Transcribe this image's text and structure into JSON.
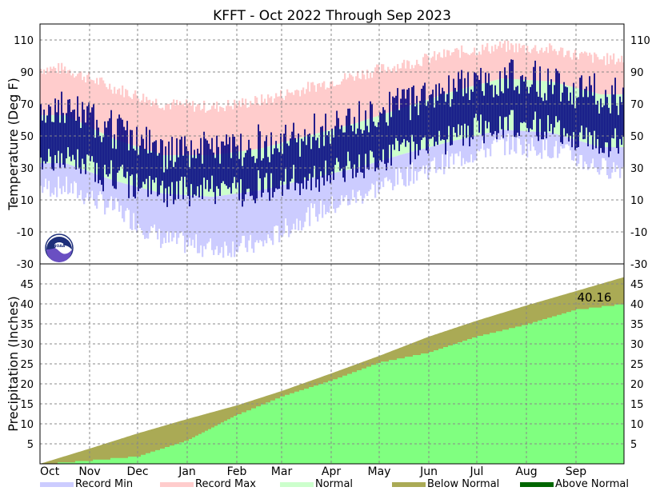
{
  "title": "KFFT - Oct 2022 Through Sep 2023",
  "colors": {
    "record_min": "#ccccff",
    "record_max": "#ffcccc",
    "normal": "#ccffcc",
    "observed": "#000080",
    "below_normal": "#aaaa55",
    "above_normal": "#006600",
    "observed_precip": "#80ff80",
    "grid": "#888888"
  },
  "chart_data": [
    {
      "type": "bar",
      "name": "temperature",
      "ylabel": "Temperature (Deg F)",
      "ylim": [
        -30,
        120
      ],
      "yticks": [
        -30,
        -10,
        10,
        30,
        50,
        70,
        90,
        110
      ],
      "months": [
        "Oct",
        "Nov",
        "Dec",
        "Jan",
        "Feb",
        "Mar",
        "Apr",
        "May",
        "Jun",
        "Jul",
        "Aug",
        "Sep"
      ],
      "grid": true,
      "logo": "noaa-logo",
      "monthly_estimates": {
        "record_max": [
          92,
          80,
          70,
          68,
          72,
          80,
          88,
          95,
          102,
          106,
          104,
          98
        ],
        "record_min": [
          18,
          5,
          -15,
          -20,
          -18,
          0,
          12,
          25,
          35,
          45,
          42,
          30
        ],
        "normal_high": [
          63,
          48,
          38,
          38,
          42,
          50,
          58,
          68,
          78,
          86,
          84,
          76
        ],
        "normal_low": [
          33,
          22,
          14,
          12,
          16,
          23,
          30,
          39,
          47,
          54,
          52,
          43
        ],
        "observed_high": [
          66,
          55,
          40,
          42,
          45,
          50,
          60,
          72,
          80,
          86,
          84,
          76
        ],
        "observed_low": [
          35,
          24,
          15,
          16,
          18,
          22,
          32,
          42,
          50,
          58,
          56,
          46
        ]
      }
    },
    {
      "type": "area",
      "name": "precipitation",
      "ylabel": "Precipitation (Inches)",
      "ylim": [
        0,
        50
      ],
      "yticks": [
        5,
        10,
        15,
        20,
        25,
        30,
        35,
        40,
        45
      ],
      "months": [
        "Oct",
        "Nov",
        "Dec",
        "Jan",
        "Feb",
        "Mar",
        "Apr",
        "May",
        "Jun",
        "Jul",
        "Aug",
        "Sep"
      ],
      "grid": true,
      "annotation": "40.16",
      "normal_cumulative_month_end": [
        3.8,
        7.6,
        11.2,
        14.6,
        18.2,
        22.6,
        27.0,
        31.8,
        35.8,
        39.6,
        43.2,
        46.7
      ],
      "observed_cumulative_month_end": [
        1.0,
        2.0,
        6.0,
        12.4,
        17.0,
        21.0,
        25.5,
        28.0,
        32.0,
        35.0,
        38.7,
        40.16
      ]
    }
  ],
  "legend": [
    {
      "label": "Record Min",
      "color": "#ccccff"
    },
    {
      "label": "Record Max",
      "color": "#ffcccc"
    },
    {
      "label": "Normal",
      "color": "#ccffcc"
    },
    {
      "label": "Below Normal",
      "color": "#aaaa55"
    },
    {
      "label": "Above Normal",
      "color": "#006600"
    }
  ]
}
